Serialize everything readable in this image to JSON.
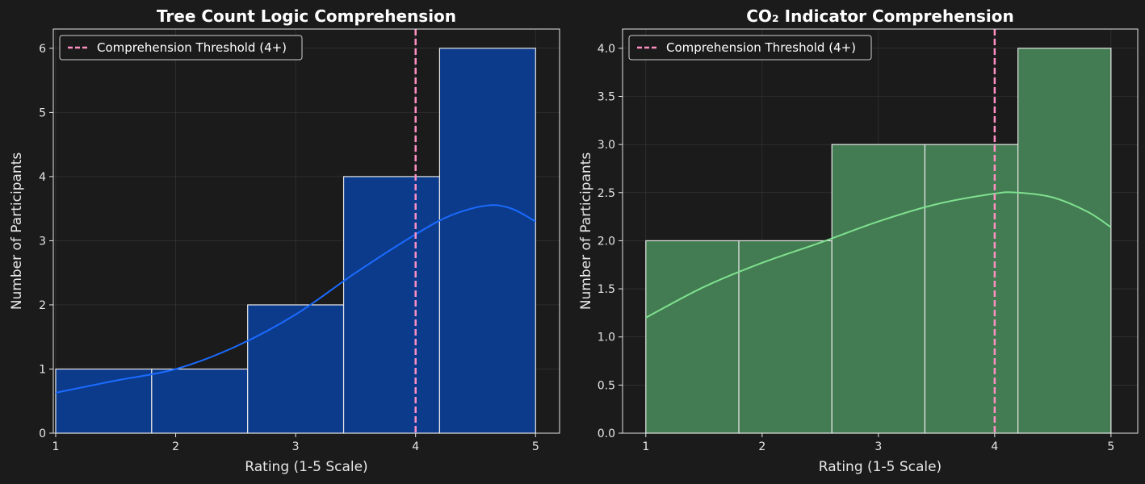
{
  "chart_data": [
    {
      "type": "bar",
      "title": "Tree Count Logic Comprehension",
      "xlabel": "Rating (1-5 Scale)",
      "ylabel": "Number of Participants",
      "xlim": [
        0.98,
        5.2
      ],
      "ylim": [
        0,
        6.3
      ],
      "xticks": [
        1,
        2,
        3,
        4,
        5
      ],
      "yticks": [
        0,
        1,
        2,
        3,
        4,
        5,
        6
      ],
      "ytick_labels": [
        "0",
        "1",
        "2",
        "3",
        "4",
        "5",
        "6"
      ],
      "bins": [
        1.0,
        1.8,
        2.6,
        3.4,
        4.2,
        5.0
      ],
      "counts": [
        1,
        1,
        2,
        4,
        6
      ],
      "bar_color": "#0d3b8c",
      "kde": {
        "x": [
          1.0,
          1.5,
          2.0,
          2.5,
          3.0,
          3.5,
          4.0,
          4.3,
          4.6,
          4.8,
          5.0
        ],
        "y": [
          0.63,
          0.82,
          1.0,
          1.35,
          1.85,
          2.5,
          3.1,
          3.4,
          3.55,
          3.5,
          3.3
        ],
        "color": "#1a6bff"
      },
      "threshold": {
        "x": 4,
        "label": "Comprehension Threshold (4+)",
        "color": "#ff8fc3"
      },
      "legend_position": "top-left",
      "grid": true
    },
    {
      "type": "bar",
      "title": "CO₂ Indicator Comprehension",
      "xlabel": "Rating (1-5 Scale)",
      "ylabel": "Number of Participants",
      "xlim": [
        0.8,
        5.23
      ],
      "ylim": [
        0,
        4.2
      ],
      "xticks": [
        1,
        2,
        3,
        4,
        5
      ],
      "yticks": [
        0,
        0.5,
        1.0,
        1.5,
        2.0,
        2.5,
        3.0,
        3.5,
        4.0
      ],
      "ytick_labels": [
        "0.0",
        "0.5",
        "1.0",
        "1.5",
        "2.0",
        "2.5",
        "3.0",
        "3.5",
        "4.0"
      ],
      "bins": [
        1.0,
        1.8,
        2.6,
        3.4,
        4.2,
        5.0
      ],
      "counts": [
        2,
        2,
        3,
        3,
        4
      ],
      "bar_color": "#437c52",
      "kde": {
        "x": [
          1.0,
          1.5,
          2.0,
          2.5,
          3.0,
          3.5,
          4.0,
          4.2,
          4.5,
          4.8,
          5.0
        ],
        "y": [
          1.2,
          1.52,
          1.77,
          1.98,
          2.2,
          2.38,
          2.49,
          2.5,
          2.45,
          2.3,
          2.14
        ],
        "color": "#7fe08f"
      },
      "threshold": {
        "x": 4,
        "label": "Comprehension Threshold (4+)",
        "color": "#ff8fc3"
      },
      "legend_position": "top-left",
      "grid": true
    }
  ]
}
